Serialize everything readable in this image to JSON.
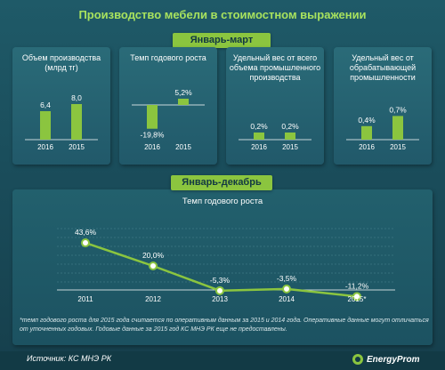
{
  "title": "Производство  мебели в стоимостном выражении",
  "banner_top": "Январь-март",
  "banner_bottom": "Январь-декабрь",
  "source": "Источник: КС МНЭ РК",
  "logo_text": "EnergyProm",
  "footnote": "*темп годового роста для 2015 года считается по оперативным данным за 2015 и 2014 года. Оперативные данные могут отличаться от уточненных годовых. Годовые данные за 2015 год КС МНЭ РК еще не предоставлены.",
  "colors": {
    "accent": "#8bc53f",
    "title": "#a8e25e",
    "background": "#1a4d5b"
  },
  "chart_data": [
    {
      "type": "bar",
      "title": "Объем производства (млрд тг)",
      "categories": [
        "2016",
        "2015"
      ],
      "values": [
        6.4,
        8.0
      ],
      "value_labels": [
        "6,4",
        "8,0"
      ]
    },
    {
      "type": "bar",
      "title": "Темп годового роста",
      "categories": [
        "2016",
        "2015"
      ],
      "values": [
        -19.8,
        5.2
      ],
      "value_labels": [
        "-19,8%",
        "5,2%"
      ]
    },
    {
      "type": "bar",
      "title": "Удельный вес от всего объема промышленного производства",
      "categories": [
        "2016",
        "2015"
      ],
      "values": [
        0.2,
        0.2
      ],
      "value_labels": [
        "0,2%",
        "0,2%"
      ]
    },
    {
      "type": "bar",
      "title": "Удельный вес от обрабатывающей промышленности",
      "categories": [
        "2016",
        "2015"
      ],
      "values": [
        0.4,
        0.7
      ],
      "value_labels": [
        "0,4%",
        "0,7%"
      ]
    },
    {
      "type": "line",
      "title": "Темп годового роста",
      "x": [
        "2011",
        "2012",
        "2013",
        "2014",
        "2015*"
      ],
      "values": [
        43.6,
        20.0,
        -5.3,
        -3.5,
        -11.2
      ],
      "value_labels": [
        "43,6%",
        "20,0%",
        "-5,3%",
        "-3,5%",
        "-11,2%"
      ],
      "grid": true
    }
  ]
}
